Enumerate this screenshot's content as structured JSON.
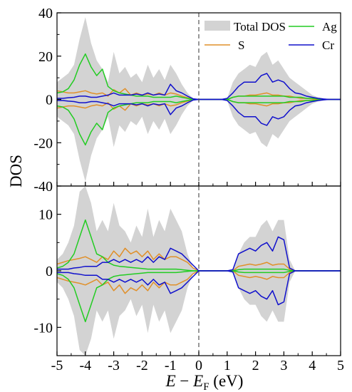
{
  "chart_data": {
    "type": "area",
    "xlabel": "E − E_F (eV)",
    "xlabel_parts": {
      "e": "E",
      "minus": " − ",
      "ef_base": "E",
      "ef_sub": "F",
      "unit": " (eV)"
    },
    "ylabel": "DOS",
    "xlim": [
      -5,
      5
    ],
    "x_ticks": [
      -5,
      -4,
      -3,
      -2,
      -1,
      0,
      1,
      2,
      3,
      4,
      5
    ],
    "fermi_level": 0,
    "grid": false,
    "legend_position": "top-right",
    "legend": [
      {
        "name": "Total DOS",
        "kind": "fill",
        "color": "#d3d3d3"
      },
      {
        "name": "Ag",
        "kind": "line",
        "color": "#22cc22"
      },
      {
        "name": "S",
        "kind": "line",
        "color": "#e0902a"
      },
      {
        "name": "Cr",
        "kind": "line",
        "color": "#1010cc"
      }
    ],
    "panels": [
      {
        "position": "top",
        "ylim": [
          -40,
          40
        ],
        "y_ticks": [
          -40,
          -20,
          0,
          20,
          40
        ],
        "x": [
          -5.0,
          -4.8,
          -4.6,
          -4.4,
          -4.2,
          -4.0,
          -3.8,
          -3.6,
          -3.4,
          -3.2,
          -3.0,
          -2.8,
          -2.6,
          -2.4,
          -2.2,
          -2.0,
          -1.8,
          -1.6,
          -1.4,
          -1.2,
          -1.0,
          -0.8,
          -0.6,
          -0.4,
          -0.2,
          0.0,
          0.2,
          0.4,
          0.6,
          0.8,
          1.0,
          1.2,
          1.4,
          1.6,
          1.8,
          2.0,
          2.2,
          2.4,
          2.6,
          2.8,
          3.0,
          3.2,
          3.4,
          3.6,
          3.8,
          4.0,
          4.2,
          4.4,
          4.6,
          4.8,
          5.0
        ],
        "series": [
          {
            "name": "Total DOS",
            "values": [
              8,
              10,
              12,
              16,
              28,
              38,
              26,
              18,
              14,
              8,
              22,
              12,
              15,
              10,
              12,
              8,
              16,
              10,
              14,
              9,
              16,
              12,
              7,
              3,
              0.5,
              0,
              0,
              0,
              0,
              0,
              0.5,
              8,
              12,
              14,
              16,
              15,
              20,
              22,
              16,
              18,
              14,
              10,
              8,
              6,
              4,
              2,
              1,
              0.5,
              0,
              0,
              0
            ]
          },
          {
            "name": "Ag",
            "values": [
              3,
              3.5,
              5,
              9,
              16,
              21,
              15,
              11,
              14,
              6,
              4,
              3,
              2.5,
              2,
              1.5,
              1.5,
              1.5,
              1,
              1,
              1,
              1,
              1.5,
              1,
              0.5,
              0,
              0,
              0,
              0,
              0,
              0,
              0,
              1,
              1.5,
              1.5,
              1.5,
              1.5,
              1.5,
              1.5,
              1.5,
              1.5,
              1.5,
              1,
              1,
              1,
              0.5,
              0.5,
              0.3,
              0,
              0,
              0,
              0
            ]
          },
          {
            "name": "S",
            "values": [
              4,
              3.5,
              3,
              3,
              3.5,
              4,
              3,
              2.5,
              3,
              1.5,
              4.5,
              3,
              5,
              2,
              3,
              2,
              2.5,
              2,
              3,
              2,
              3,
              2.5,
              1.5,
              0.8,
              0,
              0,
              0,
              0,
              0,
              0,
              0,
              1,
              1.5,
              1.5,
              2,
              2,
              2.5,
              3,
              2,
              2,
              1.5,
              1.5,
              1,
              0.5,
              0.5,
              0.3,
              0.1,
              0,
              0,
              0,
              0
            ]
          },
          {
            "name": "Cr",
            "values": [
              0.5,
              0.5,
              0.8,
              1,
              1.5,
              1.5,
              1,
              1,
              1.5,
              2,
              3,
              2,
              2,
              2,
              2.5,
              2,
              3,
              2,
              2.5,
              2,
              7,
              4,
              3,
              1.5,
              0.3,
              0,
              0,
              0,
              0,
              0,
              0.5,
              3,
              6,
              8,
              8,
              8,
              11,
              12,
              8,
              9,
              8,
              5,
              3,
              2.5,
              1.5,
              1,
              0.5,
              0.2,
              0,
              0,
              0
            ]
          }
        ]
      },
      {
        "position": "bottom",
        "ylim": [
          -15,
          15
        ],
        "y_ticks": [
          -10,
          0,
          10
        ],
        "x": [
          -5.0,
          -4.8,
          -4.6,
          -4.4,
          -4.2,
          -4.0,
          -3.8,
          -3.6,
          -3.4,
          -3.2,
          -3.0,
          -2.8,
          -2.6,
          -2.4,
          -2.2,
          -2.0,
          -1.8,
          -1.6,
          -1.4,
          -1.2,
          -1.0,
          -0.8,
          -0.6,
          -0.4,
          -0.2,
          0.0,
          0.2,
          0.4,
          0.6,
          0.8,
          1.0,
          1.2,
          1.4,
          1.6,
          1.8,
          2.0,
          2.2,
          2.4,
          2.6,
          2.8,
          3.0,
          3.2,
          3.4,
          3.6,
          3.8,
          4.0,
          4.2,
          4.4,
          4.6,
          4.8,
          5.0
        ],
        "series": [
          {
            "name": "Total DOS",
            "values": [
              2,
              3,
              5,
              8,
              14,
              15,
              12,
              7,
              9,
              7,
              12,
              8,
              7,
              5,
              8,
              6,
              11,
              6,
              9,
              7,
              11,
              9,
              7,
              3,
              0.5,
              0,
              0,
              0,
              0,
              0,
              0,
              0.3,
              3,
              5,
              6,
              6,
              8,
              9,
              7,
              9,
              9,
              2,
              0,
              0,
              0,
              0,
              0,
              0,
              0,
              0,
              0
            ]
          },
          {
            "name": "Ag",
            "values": [
              0.5,
              0.8,
              1.5,
              3,
              6,
              9,
              6,
              3,
              2.5,
              1.5,
              1,
              0.8,
              0.7,
              0.6,
              0.5,
              0.4,
              0.3,
              0.3,
              0.3,
              0.3,
              0.3,
              0.3,
              0.2,
              0.1,
              0,
              0,
              0,
              0,
              0,
              0,
              0,
              0,
              0.2,
              0.3,
              0.3,
              0.3,
              0.3,
              0.3,
              0.3,
              0.3,
              0.3,
              0.1,
              0,
              0,
              0,
              0,
              0,
              0,
              0,
              0,
              0
            ]
          },
          {
            "name": "S",
            "values": [
              1.2,
              1.5,
              1.8,
              2,
              2.2,
              2.5,
              2,
              1.5,
              2.5,
              2,
              3.5,
              2.5,
              4,
              3,
              3.5,
              2.5,
              3.5,
              2,
              3,
              2,
              2.5,
              2.5,
              2,
              1.5,
              0.5,
              0,
              0,
              0,
              0,
              0,
              0,
              0,
              0.8,
              1,
              1.2,
              1,
              1.2,
              1.5,
              1,
              1.2,
              1.2,
              0.3,
              0,
              0,
              0,
              0,
              0,
              0,
              0,
              0,
              0
            ]
          },
          {
            "name": "Cr",
            "values": [
              0.3,
              0.3,
              0.3,
              0.5,
              0.6,
              0.8,
              0.8,
              0.8,
              1.5,
              1.5,
              2,
              1.5,
              2,
              1.5,
              2,
              1.5,
              2.5,
              1.5,
              2.5,
              2,
              4,
              3.5,
              3,
              2,
              1,
              0,
              0,
              0,
              0,
              0,
              0,
              0.2,
              3,
              3.5,
              4,
              3.5,
              4.5,
              5,
              3.5,
              6,
              5.5,
              0.5,
              0,
              0,
              0,
              0,
              0,
              0,
              0,
              0,
              0
            ]
          }
        ]
      }
    ]
  }
}
